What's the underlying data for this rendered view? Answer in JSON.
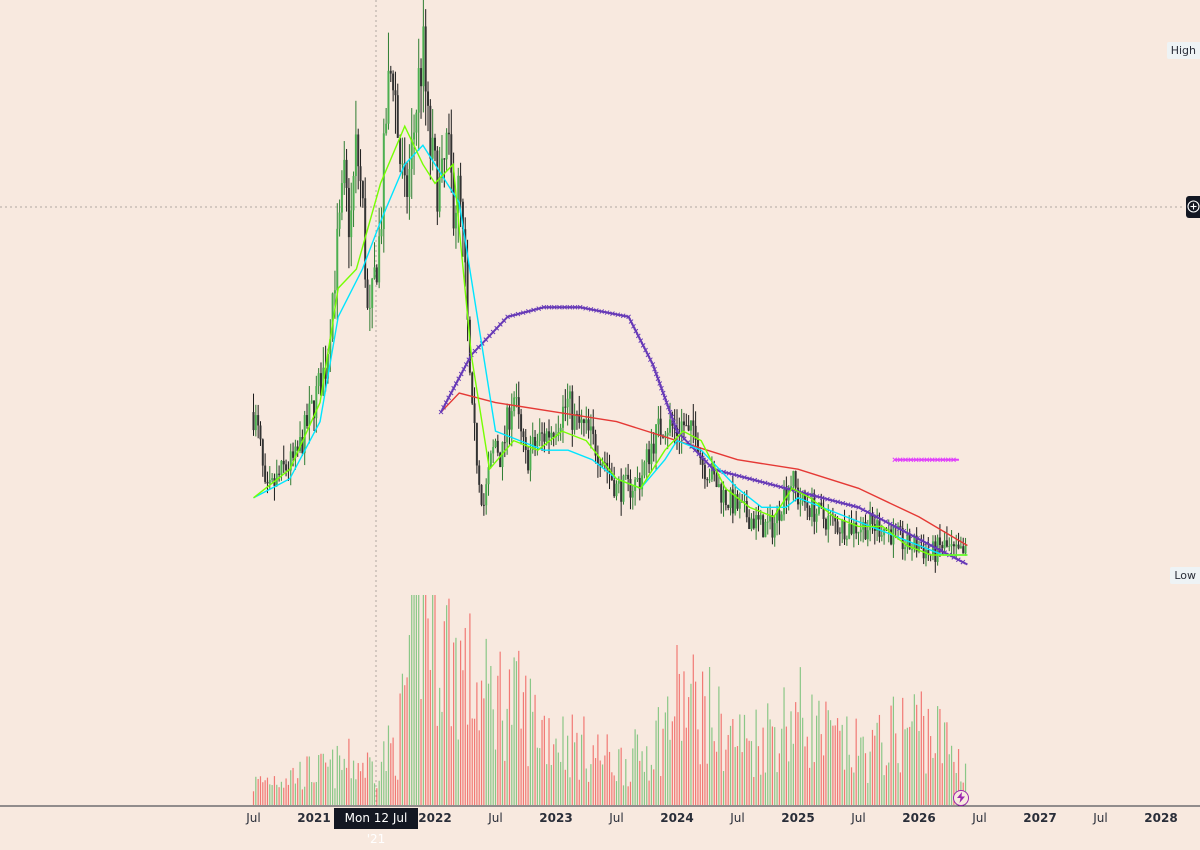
{
  "price_labels": {
    "high": "High",
    "low": "Low"
  },
  "cursor_date_label": "Mon 12 Jul '21",
  "chart_data": {
    "type": "candlestick",
    "x_axis": {
      "start": 2020.25,
      "end": 2028.2,
      "ticks": [
        {
          "t": 2020.5,
          "label": "Jul",
          "year": false
        },
        {
          "t": 2021.0,
          "label": "2021",
          "year": true
        },
        {
          "t": 2022.0,
          "label": "2022",
          "year": true
        },
        {
          "t": 2022.5,
          "label": "Jul",
          "year": false
        },
        {
          "t": 2023.0,
          "label": "2023",
          "year": true
        },
        {
          "t": 2023.5,
          "label": "Jul",
          "year": false
        },
        {
          "t": 2024.0,
          "label": "2024",
          "year": true
        },
        {
          "t": 2024.5,
          "label": "Jul",
          "year": false
        },
        {
          "t": 2025.0,
          "label": "2025",
          "year": true
        },
        {
          "t": 2025.5,
          "label": "Jul",
          "year": false
        },
        {
          "t": 2026.0,
          "label": "2026",
          "year": true
        },
        {
          "t": 2026.5,
          "label": "Jul",
          "year": false
        },
        {
          "t": 2027.0,
          "label": "2027",
          "year": true
        },
        {
          "t": 2027.5,
          "label": "Jul",
          "year": false
        },
        {
          "t": 2028.0,
          "label": "2028",
          "year": true
        }
      ]
    },
    "price_scale": {
      "min": 0,
      "max": 100
    },
    "price_path": [
      [
        2020.5,
        60
      ],
      [
        2020.55,
        57
      ],
      [
        2020.6,
        51
      ],
      [
        2020.75,
        54
      ],
      [
        2020.85,
        55
      ],
      [
        2020.95,
        59
      ],
      [
        2021.05,
        63
      ],
      [
        2021.1,
        65
      ],
      [
        2021.15,
        72
      ],
      [
        2021.2,
        78
      ],
      [
        2021.25,
        84
      ],
      [
        2021.3,
        79
      ],
      [
        2021.35,
        88
      ],
      [
        2021.4,
        82
      ],
      [
        2021.45,
        68
      ],
      [
        2021.5,
        74
      ],
      [
        2021.55,
        79
      ],
      [
        2021.6,
        92
      ],
      [
        2021.65,
        97
      ],
      [
        2021.7,
        88
      ],
      [
        2021.75,
        82
      ],
      [
        2021.8,
        86
      ],
      [
        2021.85,
        93
      ],
      [
        2021.9,
        98
      ],
      [
        2021.95,
        88
      ],
      [
        2022.0,
        85
      ],
      [
        2022.05,
        83
      ],
      [
        2022.1,
        88
      ],
      [
        2022.15,
        82
      ],
      [
        2022.2,
        83
      ],
      [
        2022.25,
        74
      ],
      [
        2022.3,
        60
      ],
      [
        2022.35,
        55
      ],
      [
        2022.4,
        50
      ],
      [
        2022.45,
        54
      ],
      [
        2022.5,
        57
      ],
      [
        2022.55,
        55
      ],
      [
        2022.6,
        59
      ],
      [
        2022.65,
        62
      ],
      [
        2022.7,
        58
      ],
      [
        2022.75,
        55
      ],
      [
        2022.85,
        57
      ],
      [
        2022.95,
        58
      ],
      [
        2023.05,
        60
      ],
      [
        2023.1,
        61
      ],
      [
        2023.15,
        59
      ],
      [
        2023.25,
        58
      ],
      [
        2023.4,
        55
      ],
      [
        2023.5,
        52
      ],
      [
        2023.6,
        52
      ],
      [
        2023.7,
        53
      ],
      [
        2023.8,
        57
      ],
      [
        2023.9,
        59
      ],
      [
        2024.0,
        58
      ],
      [
        2024.05,
        59
      ],
      [
        2024.1,
        57
      ],
      [
        2024.15,
        59
      ],
      [
        2024.2,
        55
      ],
      [
        2024.3,
        53
      ],
      [
        2024.4,
        51
      ],
      [
        2024.5,
        50
      ],
      [
        2024.6,
        49
      ],
      [
        2024.7,
        48
      ],
      [
        2024.8,
        48
      ],
      [
        2024.85,
        50
      ],
      [
        2024.9,
        52
      ],
      [
        2024.95,
        53
      ],
      [
        2025.0,
        51
      ],
      [
        2025.1,
        50
      ],
      [
        2025.2,
        49
      ],
      [
        2025.35,
        48
      ],
      [
        2025.5,
        48
      ],
      [
        2025.6,
        48
      ],
      [
        2025.7,
        48
      ],
      [
        2025.8,
        47
      ],
      [
        2025.9,
        46
      ],
      [
        2026.0,
        46
      ],
      [
        2026.1,
        45
      ],
      [
        2026.2,
        46
      ],
      [
        2026.3,
        45
      ],
      [
        2026.4,
        45
      ]
    ],
    "series": [
      {
        "name": "",
        "color": "#e53935",
        "style": "line",
        "points": [
          [
            2022.05,
            60
          ],
          [
            2022.2,
            62
          ],
          [
            2022.5,
            61
          ],
          [
            2023.0,
            60
          ],
          [
            2023.5,
            59
          ],
          [
            2024.0,
            57
          ],
          [
            2024.5,
            55
          ],
          [
            2025.0,
            54
          ],
          [
            2025.5,
            52
          ],
          [
            2026.0,
            49
          ],
          [
            2026.4,
            46
          ]
        ]
      },
      {
        "name": "",
        "color": "#673ab7",
        "style": "crossed-line",
        "points": [
          [
            2022.05,
            60
          ],
          [
            2022.3,
            66
          ],
          [
            2022.6,
            70
          ],
          [
            2022.9,
            71
          ],
          [
            2023.2,
            71
          ],
          [
            2023.6,
            70
          ],
          [
            2023.8,
            65
          ],
          [
            2024.0,
            58
          ],
          [
            2024.3,
            54
          ],
          [
            2024.6,
            53
          ],
          [
            2024.9,
            52
          ],
          [
            2025.2,
            51
          ],
          [
            2025.5,
            50
          ],
          [
            2025.8,
            48
          ],
          [
            2026.1,
            46
          ],
          [
            2026.4,
            44
          ]
        ]
      },
      {
        "name": "",
        "color": "#00e5ff",
        "style": "line",
        "points": [
          [
            2020.5,
            51
          ],
          [
            2020.8,
            53
          ],
          [
            2021.05,
            59
          ],
          [
            2021.2,
            70
          ],
          [
            2021.4,
            75
          ],
          [
            2021.55,
            80
          ],
          [
            2021.75,
            86
          ],
          [
            2021.9,
            88
          ],
          [
            2022.0,
            86
          ],
          [
            2022.2,
            82
          ],
          [
            2022.35,
            70
          ],
          [
            2022.5,
            58
          ],
          [
            2022.7,
            57
          ],
          [
            2022.9,
            56
          ],
          [
            2023.1,
            56
          ],
          [
            2023.3,
            55
          ],
          [
            2023.5,
            53
          ],
          [
            2023.7,
            52
          ],
          [
            2023.9,
            55
          ],
          [
            2024.0,
            57
          ],
          [
            2024.2,
            56
          ],
          [
            2024.5,
            52
          ],
          [
            2024.7,
            50
          ],
          [
            2024.9,
            50
          ],
          [
            2025.0,
            51
          ],
          [
            2025.2,
            50
          ],
          [
            2025.4,
            49
          ],
          [
            2025.6,
            48
          ],
          [
            2025.8,
            47
          ],
          [
            2026.0,
            46
          ],
          [
            2026.2,
            45
          ],
          [
            2026.4,
            45
          ]
        ]
      },
      {
        "name": "",
        "color": "#76ff03",
        "style": "line",
        "points": [
          [
            2020.5,
            51
          ],
          [
            2020.8,
            54
          ],
          [
            2021.05,
            61
          ],
          [
            2021.2,
            73
          ],
          [
            2021.35,
            75
          ],
          [
            2021.55,
            84
          ],
          [
            2021.75,
            90
          ],
          [
            2021.9,
            86
          ],
          [
            2022.0,
            84
          ],
          [
            2022.15,
            86
          ],
          [
            2022.3,
            66
          ],
          [
            2022.45,
            54
          ],
          [
            2022.65,
            57
          ],
          [
            2022.85,
            56
          ],
          [
            2023.05,
            58
          ],
          [
            2023.25,
            57
          ],
          [
            2023.5,
            53
          ],
          [
            2023.7,
            52
          ],
          [
            2023.9,
            56
          ],
          [
            2024.05,
            58
          ],
          [
            2024.2,
            57
          ],
          [
            2024.4,
            52
          ],
          [
            2024.6,
            50
          ],
          [
            2024.8,
            49
          ],
          [
            2024.95,
            52
          ],
          [
            2025.1,
            51
          ],
          [
            2025.3,
            49
          ],
          [
            2025.5,
            48
          ],
          [
            2025.7,
            48
          ],
          [
            2025.9,
            46
          ],
          [
            2026.1,
            45
          ],
          [
            2026.4,
            45
          ]
        ]
      },
      {
        "name": "",
        "color": "#e040fb",
        "style": "crossed-line",
        "points": [
          [
            2025.8,
            55
          ],
          [
            2026.33,
            55
          ]
        ]
      }
    ],
    "volume_profile": [
      [
        2020.5,
        6
      ],
      [
        2020.7,
        8
      ],
      [
        2020.9,
        9
      ],
      [
        2021.1,
        10
      ],
      [
        2021.3,
        12
      ],
      [
        2021.5,
        11
      ],
      [
        2021.7,
        18
      ],
      [
        2021.8,
        45
      ],
      [
        2021.9,
        60
      ],
      [
        2022.0,
        55
      ],
      [
        2022.1,
        45
      ],
      [
        2022.2,
        40
      ],
      [
        2022.3,
        35
      ],
      [
        2022.4,
        30
      ],
      [
        2022.5,
        32
      ],
      [
        2022.7,
        28
      ],
      [
        2022.9,
        22
      ],
      [
        2023.1,
        18
      ],
      [
        2023.3,
        15
      ],
      [
        2023.5,
        12
      ],
      [
        2023.7,
        14
      ],
      [
        2023.9,
        22
      ],
      [
        2024.0,
        30
      ],
      [
        2024.2,
        28
      ],
      [
        2024.4,
        20
      ],
      [
        2024.6,
        18
      ],
      [
        2024.8,
        22
      ],
      [
        2025.0,
        26
      ],
      [
        2025.2,
        20
      ],
      [
        2025.4,
        16
      ],
      [
        2025.6,
        15
      ],
      [
        2025.8,
        20
      ],
      [
        2026.0,
        24
      ],
      [
        2026.2,
        18
      ],
      [
        2026.4,
        10
      ]
    ]
  }
}
